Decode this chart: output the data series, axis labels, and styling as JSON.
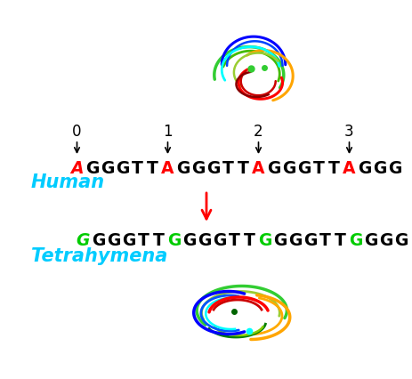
{
  "bg_color": "#ffffff",
  "human_sequence": [
    {
      "char": "A",
      "color": "#ff0000",
      "italic": true
    },
    {
      "char": "G",
      "color": "#000000",
      "italic": false
    },
    {
      "char": "G",
      "color": "#000000",
      "italic": false
    },
    {
      "char": "G",
      "color": "#000000",
      "italic": false
    },
    {
      "char": "T",
      "color": "#000000",
      "italic": false
    },
    {
      "char": "T",
      "color": "#000000",
      "italic": false
    },
    {
      "char": "A",
      "color": "#ff0000",
      "italic": false
    },
    {
      "char": "G",
      "color": "#000000",
      "italic": false
    },
    {
      "char": "G",
      "color": "#000000",
      "italic": false
    },
    {
      "char": "G",
      "color": "#000000",
      "italic": false
    },
    {
      "char": "T",
      "color": "#000000",
      "italic": false
    },
    {
      "char": "T",
      "color": "#000000",
      "italic": false
    },
    {
      "char": "A",
      "color": "#ff0000",
      "italic": false
    },
    {
      "char": "G",
      "color": "#000000",
      "italic": false
    },
    {
      "char": "G",
      "color": "#000000",
      "italic": false
    },
    {
      "char": "G",
      "color": "#000000",
      "italic": false
    },
    {
      "char": "T",
      "color": "#000000",
      "italic": false
    },
    {
      "char": "T",
      "color": "#000000",
      "italic": false
    },
    {
      "char": "A",
      "color": "#ff0000",
      "italic": false
    },
    {
      "char": "G",
      "color": "#000000",
      "italic": false
    },
    {
      "char": "G",
      "color": "#000000",
      "italic": false
    },
    {
      "char": "G",
      "color": "#000000",
      "italic": false
    }
  ],
  "tetrahymena_sequence": [
    {
      "char": "G",
      "color": "#00cc00",
      "italic": true
    },
    {
      "char": "G",
      "color": "#000000",
      "italic": false
    },
    {
      "char": "G",
      "color": "#000000",
      "italic": false
    },
    {
      "char": "G",
      "color": "#000000",
      "italic": false
    },
    {
      "char": "T",
      "color": "#000000",
      "italic": false
    },
    {
      "char": "T",
      "color": "#000000",
      "italic": false
    },
    {
      "char": "G",
      "color": "#00cc00",
      "italic": false
    },
    {
      "char": "G",
      "color": "#000000",
      "italic": false
    },
    {
      "char": "G",
      "color": "#000000",
      "italic": false
    },
    {
      "char": "G",
      "color": "#000000",
      "italic": false
    },
    {
      "char": "T",
      "color": "#000000",
      "italic": false
    },
    {
      "char": "T",
      "color": "#000000",
      "italic": false
    },
    {
      "char": "G",
      "color": "#00cc00",
      "italic": false
    },
    {
      "char": "G",
      "color": "#000000",
      "italic": false
    },
    {
      "char": "G",
      "color": "#000000",
      "italic": false
    },
    {
      "char": "G",
      "color": "#000000",
      "italic": false
    },
    {
      "char": "T",
      "color": "#000000",
      "italic": false
    },
    {
      "char": "T",
      "color": "#000000",
      "italic": false
    },
    {
      "char": "G",
      "color": "#00cc00",
      "italic": false
    },
    {
      "char": "G",
      "color": "#000000",
      "italic": false
    },
    {
      "char": "G",
      "color": "#000000",
      "italic": false
    },
    {
      "char": "G",
      "color": "#000000",
      "italic": false
    }
  ],
  "human_label": "Human",
  "tetrahymena_label": "Tetrahymena",
  "label_color": "#00ccff",
  "seq_fontsize": 13.5,
  "label_fontsize": 15,
  "num_fontsize": 12
}
